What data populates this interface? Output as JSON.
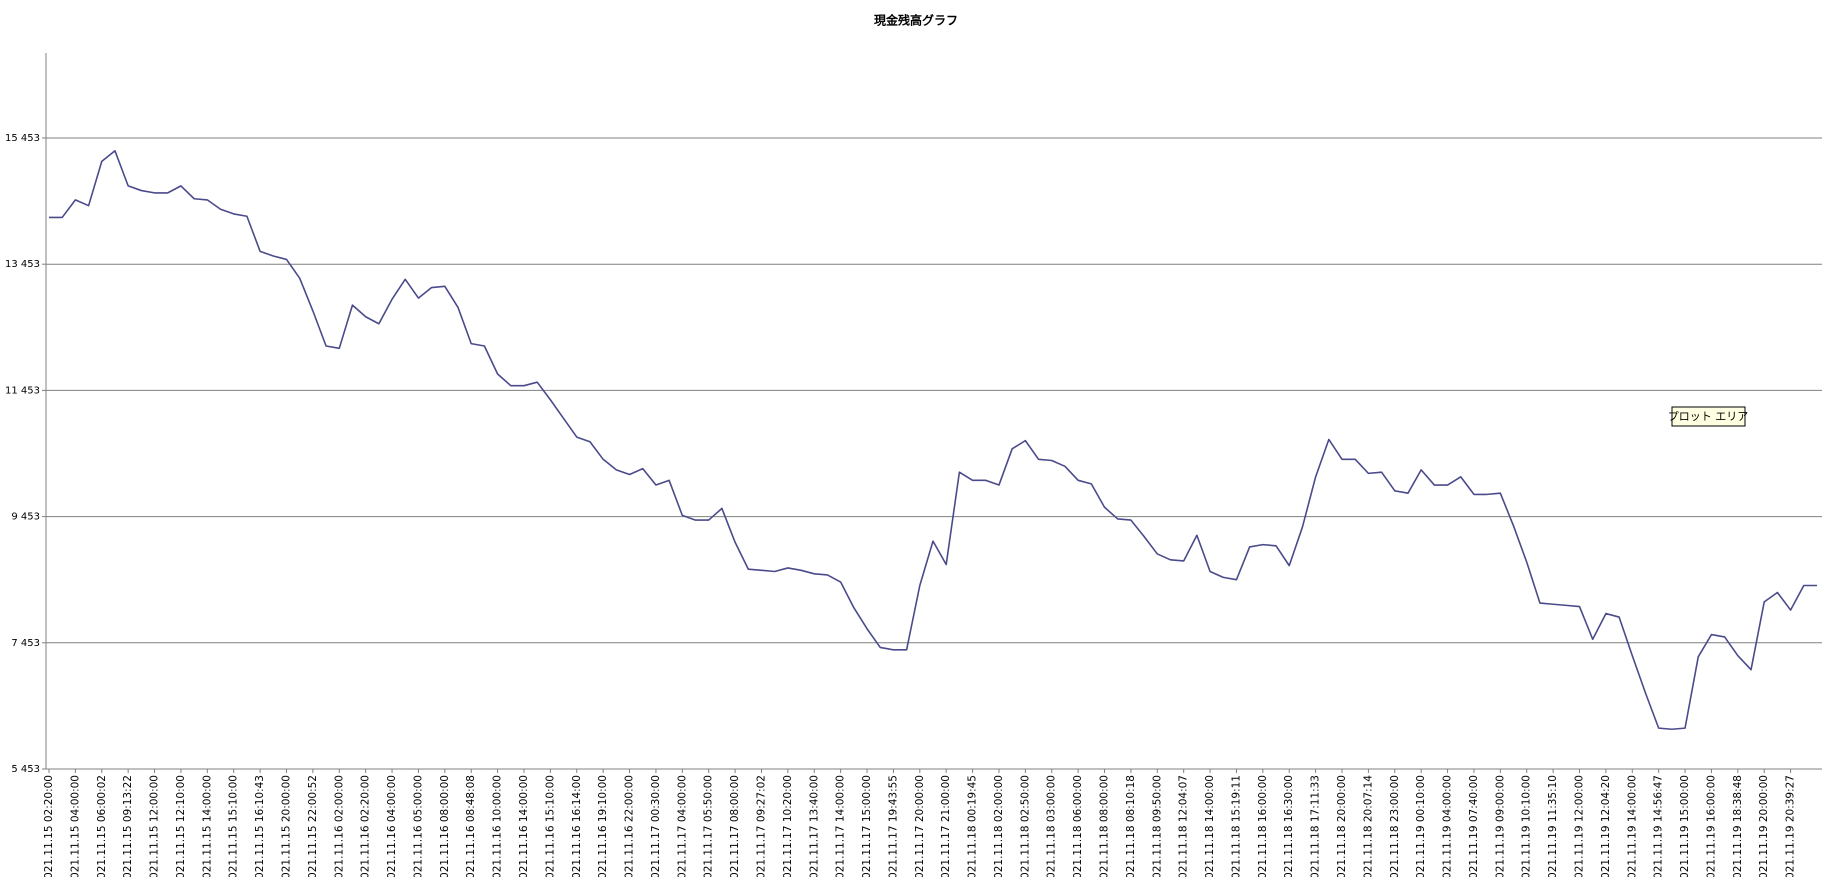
{
  "chart_data": {
    "type": "line",
    "title": "現金残高グラフ",
    "annotation": "プロット エリア",
    "color": "#4b4b8c",
    "grid": true,
    "ylim": [
      5453,
      16800
    ],
    "yticks": [
      {
        "value": 5453,
        "label": "5 453"
      },
      {
        "value": 7453,
        "label": "7 453"
      },
      {
        "value": 9453,
        "label": "9 453"
      },
      {
        "value": 11453,
        "label": "11 453"
      },
      {
        "value": 13453,
        "label": "13 453"
      },
      {
        "value": 15453,
        "label": "15 453"
      }
    ],
    "categories": [
      "2021.11.15 02:20:00",
      null,
      "2021.11.15 04:00:00",
      null,
      "2021.11.15 06:00:02",
      null,
      "2021.11.15 09:13:22",
      null,
      "2021.11.15 12:00:00",
      null,
      "2021.11.15 12:10:00",
      null,
      "2021.11.15 14:00:00",
      null,
      "2021.11.15 15:10:00",
      null,
      "2021.11.15 16:10:43",
      null,
      "2021.11.15 20:00:00",
      null,
      "2021.11.15 22:00:52",
      null,
      "2021.11.16 02:00:00",
      null,
      "2021.11.16 02:20:00",
      null,
      "2021.11.16 04:00:00",
      null,
      "2021.11.16 05:00:00",
      null,
      "2021.11.16 08:00:00",
      null,
      "2021.11.16 08:48:08",
      null,
      "2021.11.16 10:00:00",
      null,
      "2021.11.16 14:00:00",
      null,
      "2021.11.16 15:10:00",
      null,
      "2021.11.16 16:14:00",
      null,
      "2021.11.16 19:10:00",
      null,
      "2021.11.16 22:00:00",
      null,
      "2021.11.17 00:30:00",
      null,
      "2021.11.17 04:00:00",
      null,
      "2021.11.17 05:50:00",
      null,
      "2021.11.17 08:00:00",
      null,
      "2021.11.17 09:27:02",
      null,
      "2021.11.17 10:20:00",
      null,
      "2021.11.17 13:40:00",
      null,
      "2021.11.17 14:00:00",
      null,
      "2021.11.17 15:00:00",
      null,
      "2021.11.17 19:43:55",
      null,
      "2021.11.17 20:00:00",
      null,
      "2021.11.17 21:00:00",
      null,
      "2021.11.18 00:19:45",
      null,
      "2021.11.18 02:00:00",
      null,
      "2021.11.18 02:50:00",
      null,
      "2021.11.18 03:00:00",
      null,
      "2021.11.18 06:00:00",
      null,
      "2021.11.18 08:00:00",
      null,
      "2021.11.18 08:10:18",
      null,
      "2021.11.18 09:50:00",
      null,
      "2021.11.18 12:04:07",
      null,
      "2021.11.18 14:00:00",
      null,
      "2021.11.18 15:19:11",
      null,
      "2021.11.18 16:00:00",
      null,
      "2021.11.18 16:30:00",
      null,
      "2021.11.18 17:11:33",
      null,
      "2021.11.18 20:00:00",
      null,
      "2021.11.18 20:07:14",
      null,
      "2021.11.18 23:00:00",
      null,
      "2021.11.19 00:10:00",
      null,
      "2021.11.19 04:00:00",
      null,
      "2021.11.19 07:40:00",
      null,
      "2021.11.19 09:00:00",
      null,
      "2021.11.19 10:10:00",
      null,
      "2021.11.19 11:35:10",
      null,
      "2021.11.19 12:00:00",
      null,
      "2021.11.19 12:04:20",
      null,
      "2021.11.19 14:00:00",
      null,
      "2021.11.19 14:56:47",
      null,
      "2021.11.19 15:00:00",
      null,
      "2021.11.19 16:00:00",
      null,
      "2021.11.19 18:38:48",
      null,
      "2021.11.19 20:00:00",
      null,
      "2021.11.19 20:39:27",
      null,
      null
    ],
    "values": [
      14194,
      14194,
      14472,
      14380,
      15083,
      15250,
      14694,
      14620,
      14583,
      14583,
      14694,
      14490,
      14472,
      14324,
      14250,
      14213,
      13657,
      13583,
      13528,
      13231,
      12713,
      12157,
      12120,
      12805,
      12620,
      12509,
      12898,
      13213,
      12916,
      13083,
      13102,
      12768,
      12194,
      12157,
      11713,
      11528,
      11528,
      11583,
      11305,
      11009,
      10713,
      10639,
      10361,
      10194,
      10120,
      10213,
      9953,
      10028,
      9472,
      9398,
      9398,
      9583,
      9046,
      8620,
      8602,
      8583,
      8639,
      8602,
      8546,
      8528,
      8416,
      8009,
      7676,
      7379,
      7342,
      7342,
      8361,
      9064,
      8694,
      10157,
      10028,
      10028,
      9953,
      10527,
      10657,
      10361,
      10342,
      10250,
      10028,
      9972,
      9601,
      9416,
      9398,
      9138,
      8861,
      8768,
      8750,
      9157,
      8583,
      8490,
      8453,
      8972,
      9009,
      8990,
      8676,
      9287,
      10083,
      10675,
      10361,
      10361,
      10138,
      10157,
      9861,
      9824,
      10194,
      9953,
      9953,
      10083,
      9805,
      9805,
      9824,
      9305,
      8731,
      8083,
      8064,
      8046,
      8027,
      7509,
      7916,
      7861,
      7249,
      6657,
      6101,
      6083,
      6101,
      7231,
      7583,
      7546,
      7249,
      7027,
      8101,
      8250,
      7972,
      8361,
      8361
    ]
  }
}
